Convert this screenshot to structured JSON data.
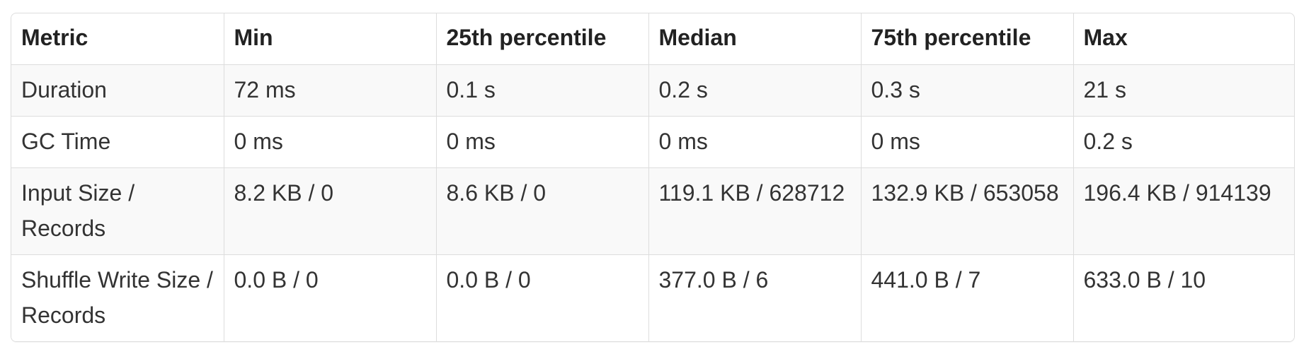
{
  "table": {
    "headers": [
      "Metric",
      "Min",
      "25th percentile",
      "Median",
      "75th percentile",
      "Max"
    ],
    "rows": [
      [
        "Duration",
        "72 ms",
        "0.1 s",
        "0.2 s",
        "0.3 s",
        "21 s"
      ],
      [
        "GC Time",
        "0 ms",
        "0 ms",
        "0 ms",
        "0 ms",
        "0.2 s"
      ],
      [
        "Input Size / Records",
        "8.2 KB / 0",
        "8.6 KB / 0",
        "119.1 KB / 628712",
        "132.9 KB / 653058",
        "196.4 KB / 914139"
      ],
      [
        "Shuffle Write Size / Records",
        "0.0 B / 0",
        "0.0 B / 0",
        "377.0 B / 6",
        "441.0 B / 7",
        "633.0 B / 10"
      ]
    ]
  },
  "colors": {
    "border": "#dddddd",
    "stripe": "#f9f9f9",
    "text": "#333333"
  }
}
